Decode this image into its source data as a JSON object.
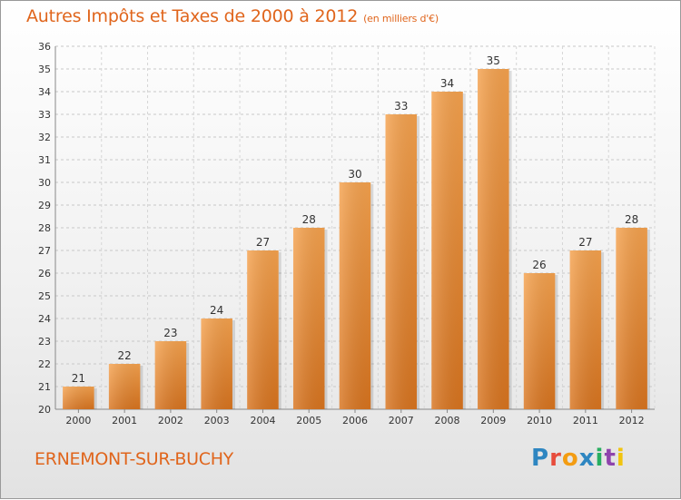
{
  "title": "Autres Impôts et Taxes de 2000 à 2012",
  "unit": "(en milliers d'€)",
  "commune": "ERNEMONT-SUR-BUCHY",
  "logo": {
    "p": "P",
    "r": "r",
    "o": "o",
    "x": "x",
    "i1": "i",
    "t": "t",
    "i2": "i"
  },
  "colors": {
    "bar_light": "#f5a24e",
    "bar_dark": "#d8741f",
    "title": "#e0651c"
  },
  "chart_data": {
    "type": "bar",
    "categories": [
      "2000",
      "2001",
      "2002",
      "2003",
      "2004",
      "2005",
      "2006",
      "2007",
      "2008",
      "2009",
      "2010",
      "2011",
      "2012"
    ],
    "values": [
      21,
      22,
      23,
      24,
      27,
      28,
      30,
      33,
      34,
      35,
      26,
      27,
      28
    ],
    "ylim": [
      20,
      36
    ],
    "yticks": [
      20,
      21,
      22,
      23,
      24,
      25,
      26,
      27,
      28,
      29,
      30,
      31,
      32,
      33,
      34,
      35,
      36
    ],
    "grid": true,
    "xlabel": "",
    "ylabel": ""
  }
}
